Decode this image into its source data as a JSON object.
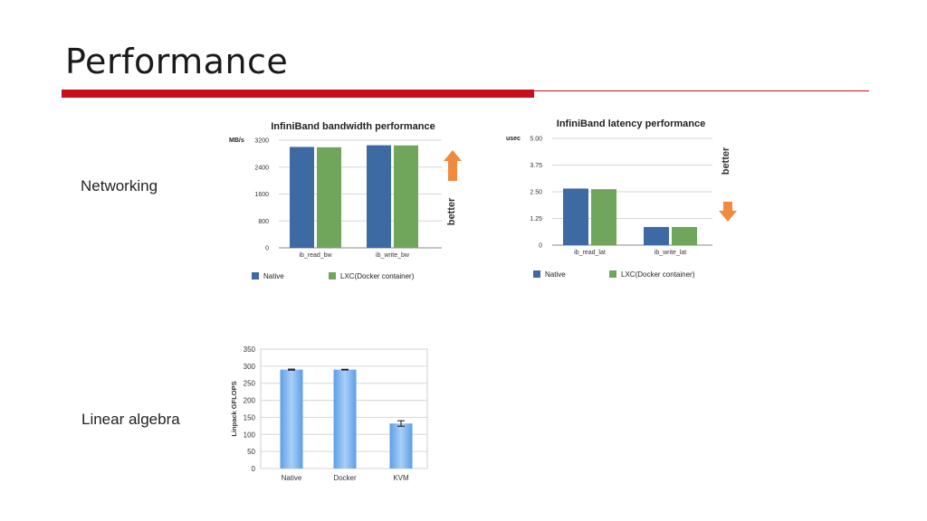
{
  "slide": {
    "title": "Performance",
    "sections": {
      "networking": "Networking",
      "linear_algebra": "Linear algebra"
    }
  },
  "chart_data": [
    {
      "id": "bandwidth",
      "type": "bar",
      "title": "InfiniBand bandwidth performance",
      "ylabel": "MB/s",
      "ylim": [
        0,
        3200
      ],
      "yticks": [
        0,
        800,
        1600,
        2400,
        3200
      ],
      "categories": [
        "ib_read_bw",
        "ib_write_bw"
      ],
      "series": [
        {
          "name": "Native",
          "color": "#3e6aa3",
          "values": [
            3000,
            3050
          ]
        },
        {
          "name": "LXC(Docker container)",
          "color": "#6fa65b",
          "values": [
            2990,
            3045
          ]
        }
      ],
      "annotation": {
        "text": "better",
        "arrow": "up",
        "color": "#f08a3c"
      },
      "legend": "bottom"
    },
    {
      "id": "latency",
      "type": "bar",
      "title": "InfiniBand latency performance",
      "ylabel": "usec",
      "ylim": [
        0,
        5.0
      ],
      "yticks": [
        "0",
        "1.25",
        "2.50",
        "3.75",
        "5.00"
      ],
      "categories": [
        "ib_read_lat",
        "ib_write_lat"
      ],
      "series": [
        {
          "name": "Native",
          "color": "#3e6aa3",
          "values": [
            2.65,
            0.85
          ]
        },
        {
          "name": "LXC(Docker container)",
          "color": "#6fa65b",
          "values": [
            2.62,
            0.85
          ]
        }
      ],
      "annotation": {
        "text": "better",
        "arrow": "down",
        "color": "#f08a3c"
      },
      "legend": "bottom"
    },
    {
      "id": "linpack",
      "type": "bar",
      "title": "",
      "ylabel": "Linpack GFLOPS",
      "ylim": [
        0,
        350
      ],
      "yticks": [
        0,
        50,
        100,
        150,
        200,
        250,
        300,
        350
      ],
      "categories": [
        "Native",
        "Docker",
        "KVM"
      ],
      "series": [
        {
          "name": "",
          "color": "#6aa8e8",
          "values": [
            290,
            290,
            132
          ],
          "errors": [
            1.5,
            1,
            8
          ]
        }
      ],
      "legend": "none"
    }
  ]
}
